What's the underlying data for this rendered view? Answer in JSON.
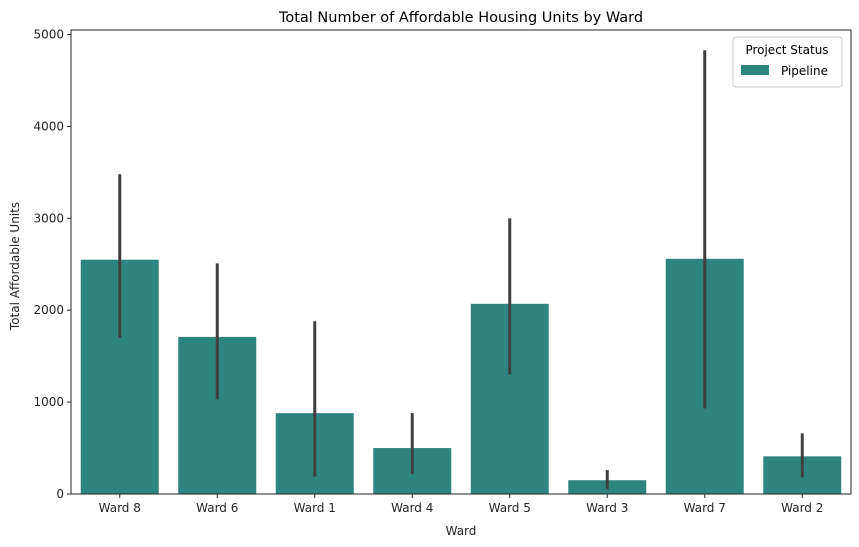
{
  "chart_data": {
    "type": "bar",
    "title": "Total Number of Affordable Housing Units by Ward",
    "xlabel": "Ward",
    "ylabel": "Total Affordable Units",
    "categories": [
      "Ward 8",
      "Ward 6",
      "Ward 1",
      "Ward 4",
      "Ward 5",
      "Ward 3",
      "Ward 7",
      "Ward 2"
    ],
    "series": [
      {
        "name": "Pipeline",
        "values": [
          2550,
          1710,
          880,
          500,
          2070,
          150,
          2560,
          410
        ],
        "error_low": [
          1700,
          1030,
          190,
          220,
          1300,
          50,
          930,
          180
        ],
        "error_high": [
          3480,
          2510,
          1880,
          880,
          3000,
          260,
          4830,
          660
        ]
      }
    ],
    "ylim": [
      0,
      5050
    ],
    "yticks": [
      0,
      1000,
      2000,
      3000,
      4000,
      5000
    ],
    "grid": false,
    "legend": {
      "title": "Project Status",
      "placement": "top-right"
    },
    "colors": {
      "bar": "#2e857f",
      "errorbar": "#3f3f3f",
      "axis": "#262626"
    }
  }
}
